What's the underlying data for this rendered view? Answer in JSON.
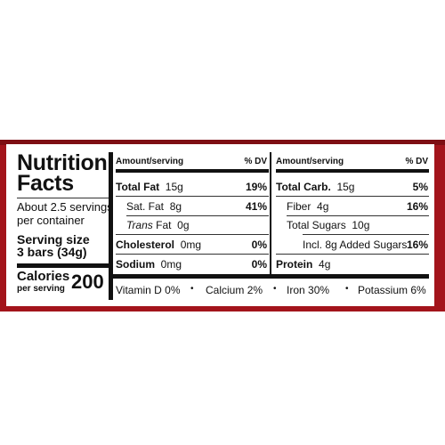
{
  "panel": {
    "title_line1": "Nutrition",
    "title_line2": "Facts",
    "servings_line1": "About 2.5 servings",
    "servings_line2": "per container",
    "serving_size_label": "Serving size",
    "serving_size_value": "3 bars (34g)",
    "calories_label": "Calories",
    "calories_sub": "per serving",
    "calories_value": "200"
  },
  "left_table": {
    "header_amount": "Amount/serving",
    "header_dv": "% DV",
    "rows": [
      {
        "name": "Total Fat",
        "amount": "15g",
        "dv": "19%"
      },
      {
        "name": "Sat. Fat",
        "amount": "8g",
        "dv": "41%"
      },
      {
        "name": "Trans",
        "name_suffix": "Fat",
        "amount": "0g",
        "dv": ""
      },
      {
        "name": "Cholesterol",
        "amount": "0mg",
        "dv": "0%"
      },
      {
        "name": "Sodium",
        "amount": "0mg",
        "dv": "0%"
      }
    ]
  },
  "right_table": {
    "header_amount": "Amount/serving",
    "header_dv": "% DV",
    "rows": [
      {
        "name": "Total Carb.",
        "amount": "15g",
        "dv": "5%"
      },
      {
        "name": "Fiber",
        "amount": "4g",
        "dv": "16%"
      },
      {
        "name": "Total Sugars",
        "amount": "10g",
        "dv": ""
      },
      {
        "name": "Incl. 8g Added Sugars",
        "amount": "",
        "dv": "16%"
      },
      {
        "name": "Protein",
        "amount": "4g",
        "dv": ""
      }
    ]
  },
  "vitamins": [
    {
      "name": "Vitamin D",
      "value": "0%"
    },
    {
      "name": "Calcium",
      "value": "2%"
    },
    {
      "name": "Iron",
      "value": "30%"
    },
    {
      "name": "Potassium",
      "value": "6%"
    }
  ],
  "bullet": "•",
  "colors": {
    "package_red": "#a3141b",
    "ink": "#111111"
  }
}
